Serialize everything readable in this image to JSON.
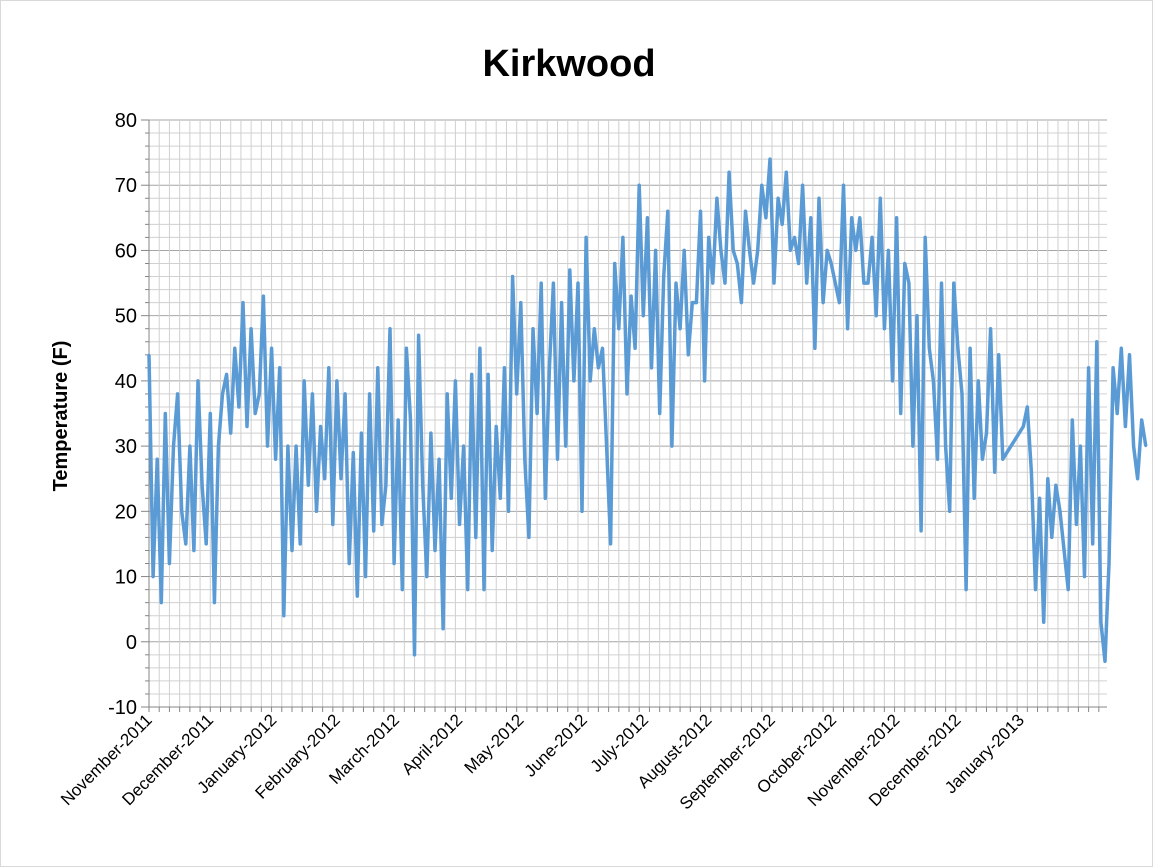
{
  "chart_data": {
    "type": "line",
    "title": "Kirkwood",
    "xlabel": "",
    "ylabel": "Temperature (F)",
    "ylim": [
      -10,
      80
    ],
    "y_major_step": 10,
    "y_minor_step": 2,
    "x_tick_labels": [
      "November-2011",
      "December-2011",
      "January-2012",
      "February-2012",
      "March-2012",
      "April-2012",
      "May-2012",
      "June-2012",
      "July-2012",
      "August-2012",
      "September-2012",
      "October-2012",
      "November-2012",
      "December-2012",
      "January-2013"
    ],
    "xlim": [
      "2011-11-01",
      "2013-02-12"
    ],
    "grid": true,
    "legend": "none",
    "series_color": "#5b9bd5",
    "series": [
      {
        "x_start": "2011-11-01",
        "x_step_days": 2,
        "values": [
          44,
          10,
          28,
          6,
          35,
          12,
          30,
          38,
          20,
          15,
          30,
          14,
          40,
          24,
          15,
          35,
          6,
          30,
          38,
          41,
          32,
          45,
          36,
          52,
          33,
          48,
          35,
          38,
          53,
          30,
          45,
          28,
          42,
          4,
          30,
          14,
          30,
          15,
          40,
          24,
          38,
          20,
          33,
          25,
          42,
          18,
          40,
          25,
          38,
          12,
          29,
          7,
          32,
          10,
          38,
          17,
          42,
          18,
          24,
          48,
          12,
          34,
          8,
          45,
          34,
          -2,
          47,
          24,
          10,
          32,
          14,
          28,
          2,
          38,
          22,
          40,
          18,
          30,
          8,
          41,
          16,
          45,
          8,
          41,
          14,
          33,
          22,
          42,
          20,
          56,
          38,
          52,
          28,
          16,
          48,
          35,
          55,
          22,
          42,
          55,
          28,
          52,
          30,
          57,
          40,
          55,
          20,
          62,
          40,
          48,
          42,
          45,
          30,
          15,
          58,
          48,
          62,
          38,
          53,
          45,
          70,
          50,
          65,
          42,
          60,
          35,
          56,
          66,
          30,
          55,
          48,
          60,
          44,
          52,
          52,
          66,
          40,
          62,
          55,
          68,
          60,
          55,
          72,
          60,
          58,
          52,
          66,
          60,
          55,
          60,
          70,
          65,
          74,
          55,
          68,
          64,
          72,
          60,
          62,
          58,
          70,
          55,
          65,
          45,
          68,
          52,
          60,
          58,
          55,
          52,
          70,
          48,
          65,
          60,
          65,
          55,
          55,
          62,
          50,
          68,
          48,
          60,
          40,
          65,
          35,
          58,
          55,
          30,
          50,
          17,
          62,
          45,
          40,
          28,
          55,
          30,
          20,
          55,
          45,
          38,
          8,
          45,
          22,
          40,
          28,
          32,
          48,
          26,
          44,
          28,
          29,
          30,
          31,
          32,
          33,
          36,
          26,
          8,
          22,
          3,
          25,
          16,
          24,
          20,
          14,
          8,
          34,
          18,
          30,
          10,
          42,
          15,
          46,
          3,
          -3,
          12,
          42,
          35,
          45,
          33,
          44,
          30,
          25,
          34,
          30
        ]
      }
    ]
  }
}
